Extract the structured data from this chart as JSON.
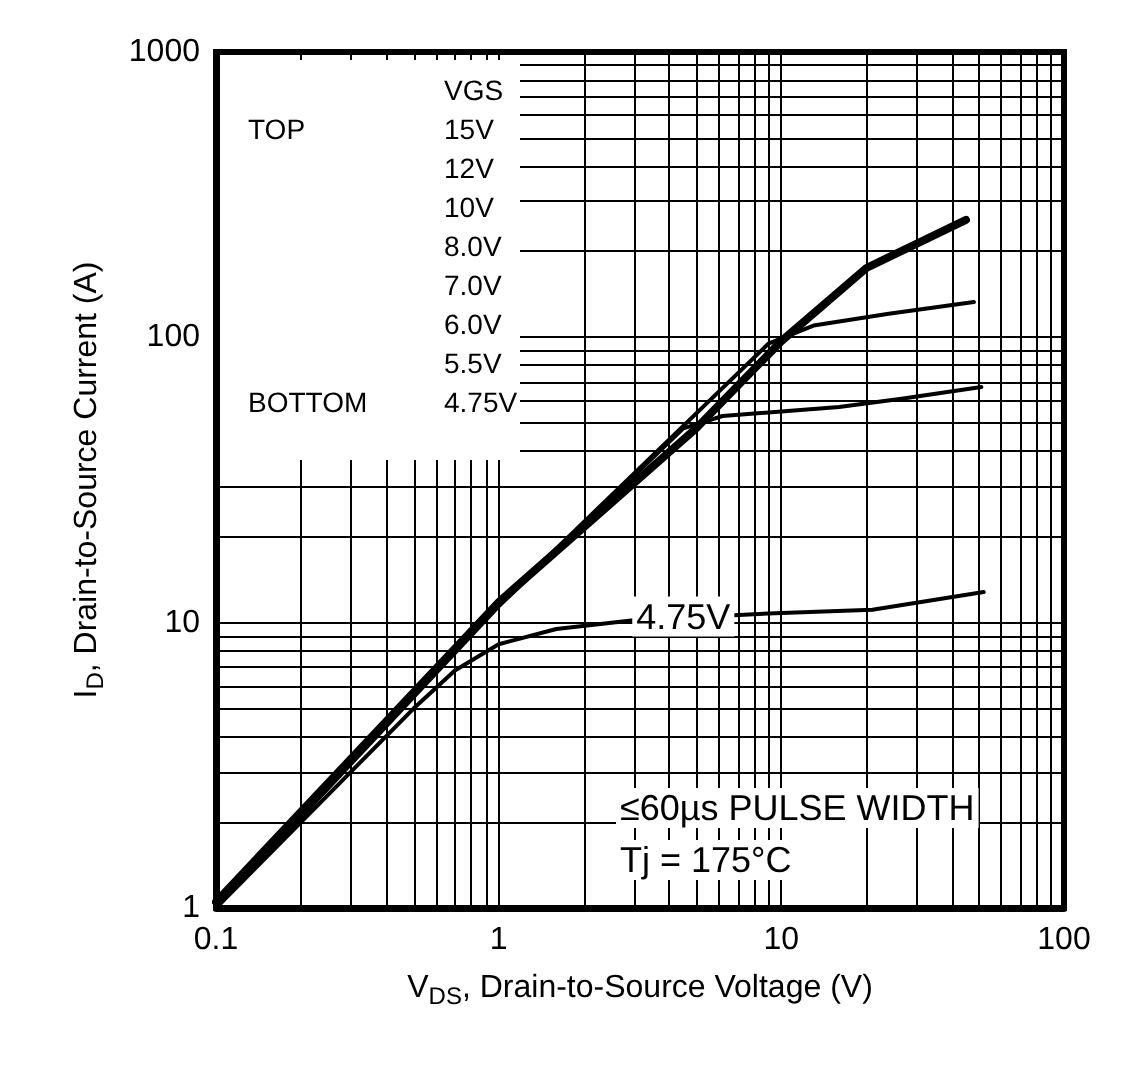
{
  "chart_data": {
    "type": "line",
    "xlabel": "V$_{DS}$, Drain-to-Source Voltage (V)",
    "ylabel": "I$_{D}$, Drain-to-Source Current (A)",
    "log": "xy",
    "grid": true,
    "marker": "none",
    "line_style": "solid",
    "xlim": [
      0.1,
      100
    ],
    "ylim": [
      1,
      1000
    ],
    "xticks": [
      0.1,
      {
        "value": 0.2,
        "label": null
      },
      {
        "value": 0.3,
        "label": null
      },
      {
        "value": 0.4,
        "label": null
      },
      {
        "value": 0.5,
        "label": null
      },
      {
        "value": 0.6,
        "label": null
      },
      {
        "value": 0.7,
        "label": null
      },
      {
        "value": 0.8,
        "label": null
      },
      {
        "value": 0.9,
        "label": null
      },
      1,
      {
        "value": 2,
        "label": null
      },
      {
        "value": 3,
        "label": null
      },
      {
        "value": 4,
        "label": null
      },
      {
        "value": 5,
        "label": null
      },
      {
        "value": 6,
        "label": null
      },
      {
        "value": 7,
        "label": null
      },
      {
        "value": 8,
        "label": null
      },
      {
        "value": 9,
        "label": null
      },
      10,
      {
        "value": 20,
        "label": null
      },
      {
        "value": 30,
        "label": null
      },
      {
        "value": 40,
        "label": null
      },
      {
        "value": 50,
        "label": null
      },
      {
        "value": 60,
        "label": null
      },
      {
        "value": 70,
        "label": null
      },
      {
        "value": 80,
        "label": null
      },
      {
        "value": 90,
        "label": null
      },
      100
    ],
    "yticks": [
      1,
      {
        "value": 2,
        "label": null
      },
      {
        "value": 3,
        "label": null
      },
      {
        "value": 4,
        "label": null
      },
      {
        "value": 5,
        "label": null
      },
      {
        "value": 6,
        "label": null
      },
      {
        "value": 7,
        "label": null
      },
      {
        "value": 8,
        "label": null
      },
      {
        "value": 9,
        "label": null
      },
      10,
      {
        "value": 20,
        "label": null
      },
      {
        "value": 30,
        "label": null
      },
      {
        "value": 40,
        "label": null
      },
      {
        "value": 50,
        "label": null
      },
      {
        "value": 60,
        "label": null
      },
      {
        "value": 70,
        "label": null
      },
      {
        "value": 80,
        "label": null
      },
      {
        "value": 90,
        "label": null
      },
      100,
      {
        "value": 200,
        "label": null
      },
      {
        "value": 300,
        "label": null
      },
      {
        "value": 400,
        "label": null
      },
      {
        "value": 500,
        "label": null
      },
      {
        "value": 600,
        "label": null
      },
      {
        "value": 700,
        "label": null
      },
      {
        "value": 800,
        "label": null
      },
      {
        "value": 900,
        "label": null
      },
      1000
    ],
    "series": [
      {
        "color": "#000000",
        "x": [
          0.1,
          1,
          5,
          10,
          20,
          45
        ],
        "values": [
          1.05,
          11.8,
          48,
          97,
          175,
          258
        ]
      },
      {
        "color": "#000000",
        "x": [
          0.1,
          1,
          9,
          13,
          24,
          48
        ],
        "values": [
          1,
          11.6,
          95,
          110,
          121,
          133
        ]
      },
      {
        "color": "#000000",
        "x": [
          0.1,
          1,
          4.5,
          6.2,
          16,
          27,
          51
        ],
        "values": [
          1,
          11.4,
          48,
          53,
          57,
          61,
          67
        ]
      },
      {
        "color": "#000000",
        "x": [
          0.1,
          0.3,
          0.5,
          0.7,
          1,
          1.6,
          3,
          9.5,
          21,
          52
        ],
        "values": [
          1,
          3,
          5,
          6.8,
          8.4,
          9.5,
          10.2,
          10.8,
          11.1,
          12.8
        ]
      }
    ],
    "annotations": [
      "VGS",
      "TOP",
      "15V",
      "12V",
      "10V",
      "8.0V",
      "7.0V",
      "6.0V",
      "5.5V",
      "BOTTOM",
      "4.75V",
      {
        "text": "4.75V",
        "x": 4.5,
        "y": 10.5
      },
      "≤60µs PULSE WIDTH",
      "Tj = 175°C"
    ]
  }
}
